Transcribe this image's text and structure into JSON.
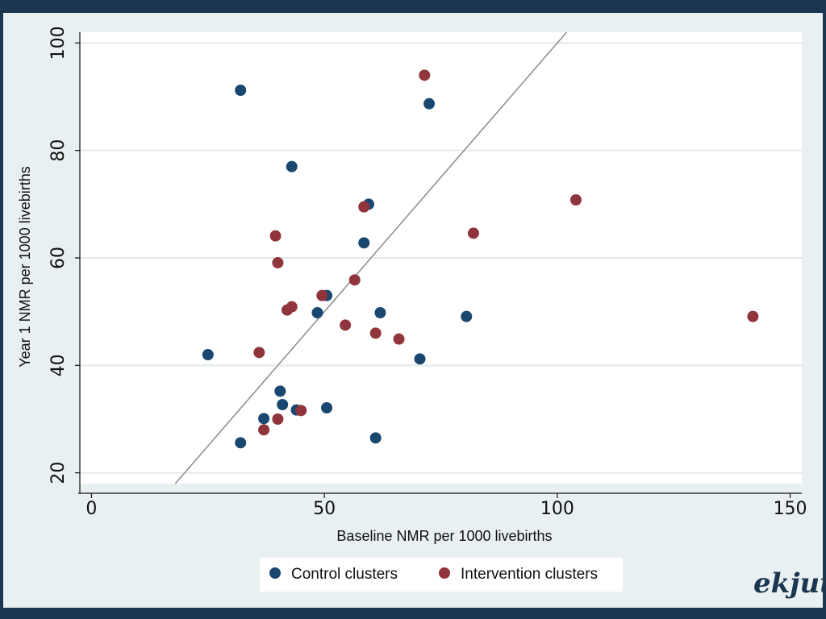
{
  "chart_data": {
    "type": "scatter",
    "xlabel": "Baseline NMR per 1000 livebirths",
    "ylabel": "Year 1 NMR per 1000 livebirths",
    "xlim": [
      -2.5,
      152.5
    ],
    "ylim": [
      18,
      102
    ],
    "x_ticks": [
      0,
      50,
      100,
      150
    ],
    "y_ticks": [
      20,
      40,
      60,
      80,
      100
    ],
    "grid": true,
    "reference_line": "y = x",
    "legend_position": "bottom-center",
    "series": [
      {
        "name": "Control clusters",
        "color": "#1a476f",
        "points": [
          [
            32,
            91.2
          ],
          [
            72.5,
            88.7
          ],
          [
            43,
            77
          ],
          [
            59.5,
            70
          ],
          [
            58.5,
            62.8
          ],
          [
            50.5,
            53
          ],
          [
            48.5,
            49.8
          ],
          [
            62,
            49.8
          ],
          [
            80.5,
            49.1
          ],
          [
            70.5,
            41.2
          ],
          [
            25,
            42
          ],
          [
            40.5,
            35.2
          ],
          [
            41,
            32.7
          ],
          [
            44,
            31.7
          ],
          [
            50.5,
            32.1
          ],
          [
            37,
            30.1
          ],
          [
            32,
            25.6
          ],
          [
            61,
            26.5
          ]
        ]
      },
      {
        "name": "Intervention clusters",
        "color": "#90353b",
        "points": [
          [
            71.5,
            94
          ],
          [
            58.5,
            69.5
          ],
          [
            82,
            64.6
          ],
          [
            104,
            70.8
          ],
          [
            39.5,
            64.1
          ],
          [
            40,
            59.1
          ],
          [
            56.5,
            55.9
          ],
          [
            49.5,
            53
          ],
          [
            42,
            50.3
          ],
          [
            43,
            50.9
          ],
          [
            54.5,
            47.5
          ],
          [
            61,
            46
          ],
          [
            66,
            44.9
          ],
          [
            142,
            49.1
          ],
          [
            36,
            42.4
          ],
          [
            40,
            30
          ],
          [
            45,
            31.6
          ],
          [
            37,
            28
          ]
        ]
      }
    ]
  },
  "logo": {
    "text": "ekjut"
  }
}
